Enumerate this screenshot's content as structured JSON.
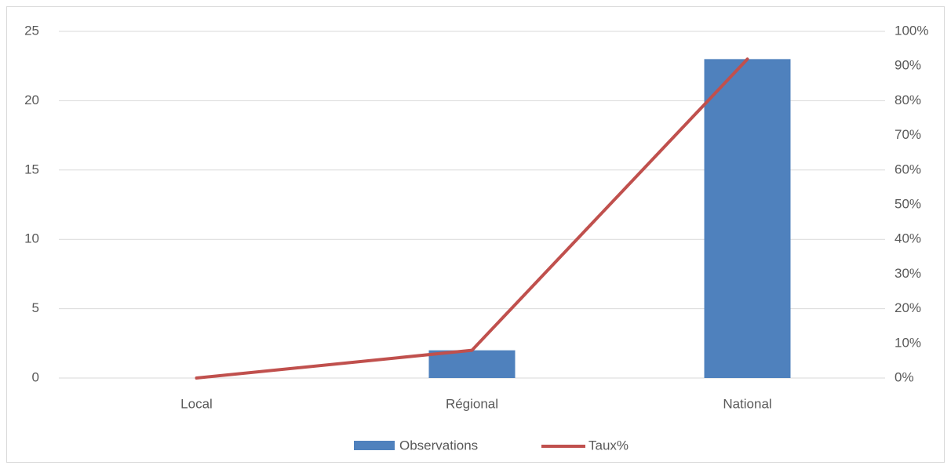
{
  "chart_data": {
    "type": "bar",
    "categories": [
      "Local",
      "Régional",
      "National"
    ],
    "series": [
      {
        "name": "Observations",
        "color": "#4f81bd",
        "type": "bar",
        "values": [
          0,
          2,
          23
        ]
      },
      {
        "name": "Taux%",
        "color": "#c0504d",
        "type": "line",
        "axis": "y2",
        "values": [
          0,
          8,
          92
        ]
      }
    ],
    "ylim": [
      0,
      25
    ],
    "yticks": [
      0,
      5,
      10,
      15,
      20,
      25
    ],
    "y2lim": [
      0,
      100
    ],
    "y2ticks": [
      {
        "value": 0,
        "label": "0%"
      },
      {
        "value": 10,
        "label": "10%"
      },
      {
        "value": 20,
        "label": "20%"
      },
      {
        "value": 30,
        "label": "30%"
      },
      {
        "value": 40,
        "label": "40%"
      },
      {
        "value": 50,
        "label": "50%"
      },
      {
        "value": 60,
        "label": "60%"
      },
      {
        "value": 70,
        "label": "70%"
      },
      {
        "value": 80,
        "label": "80%"
      },
      {
        "value": 90,
        "label": "90%"
      },
      {
        "value": 100,
        "label": "100%"
      }
    ],
    "grid": true,
    "legend": "bottom"
  }
}
